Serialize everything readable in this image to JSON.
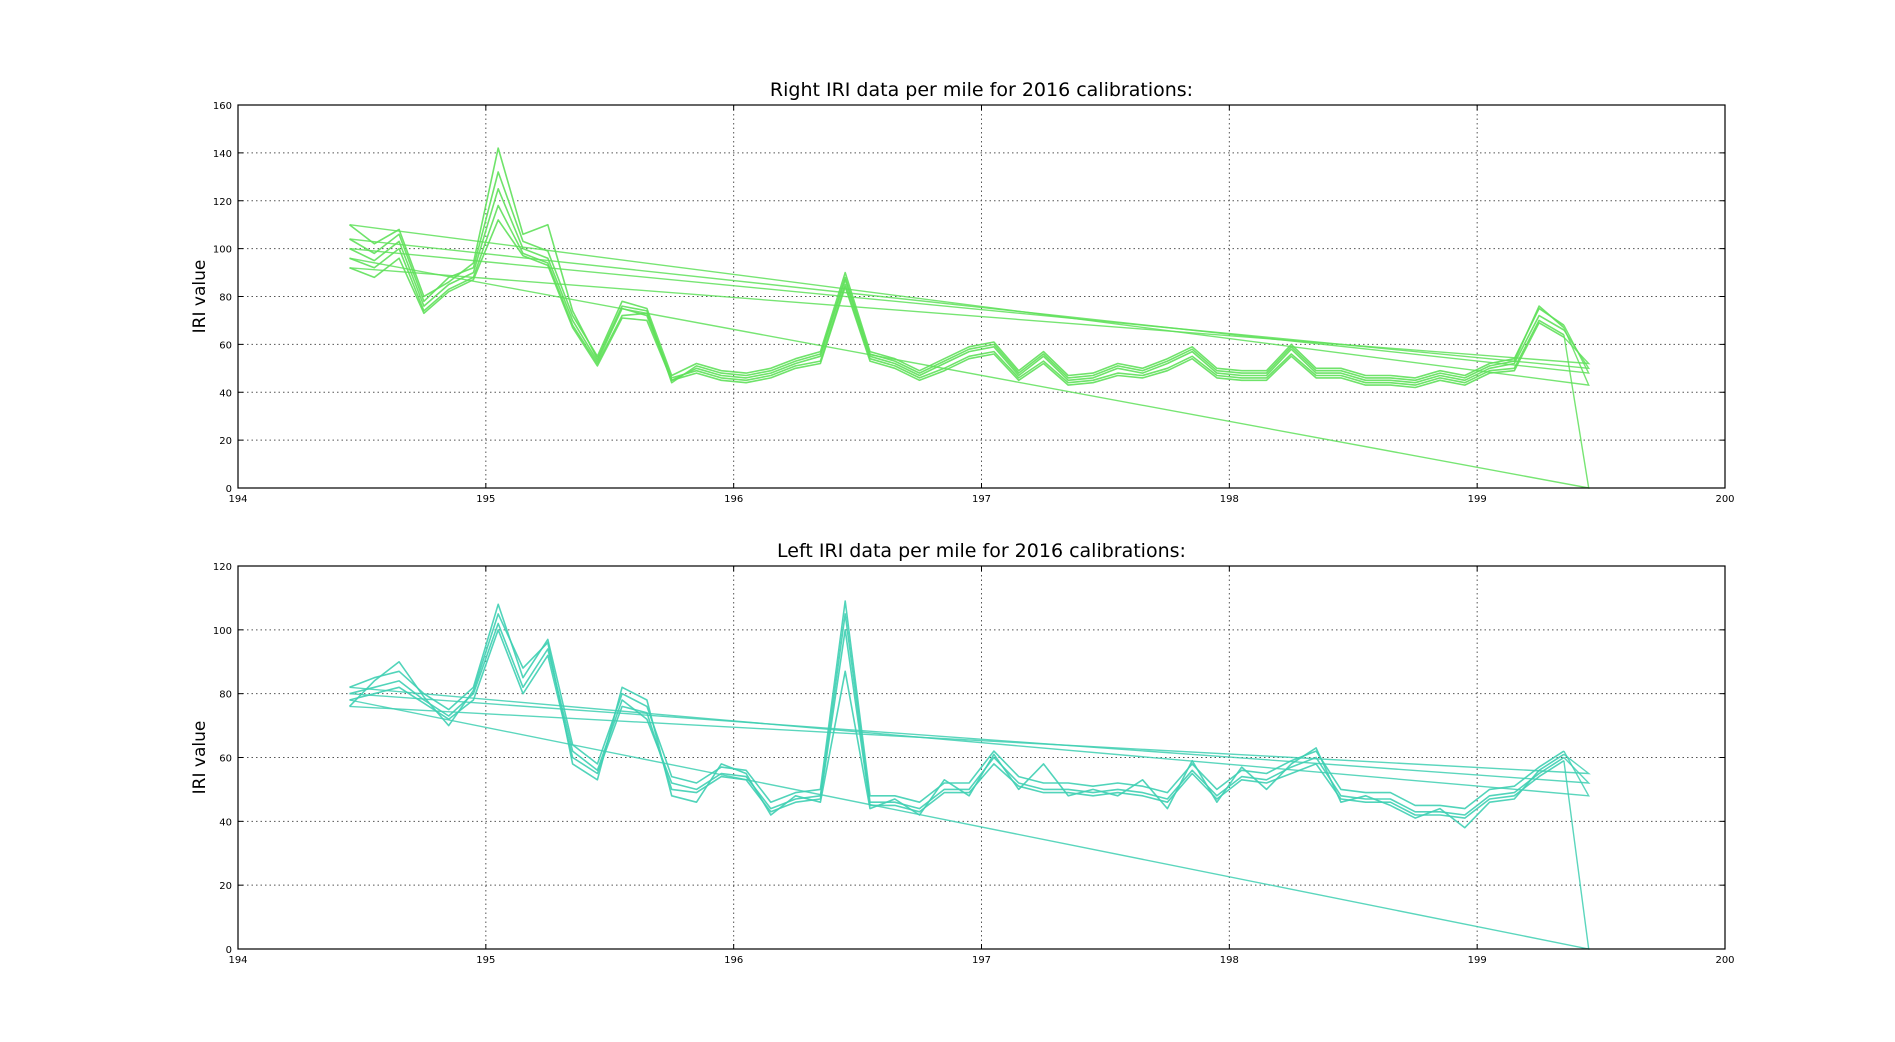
{
  "chart_data": [
    {
      "type": "line",
      "title": "Right IRI data per mile for 2016 calibrations:",
      "xlabel": "",
      "ylabel": "IRI value",
      "xlim": [
        194,
        200
      ],
      "ylim": [
        0,
        160
      ],
      "xticks": [
        194,
        195,
        196,
        197,
        198,
        199,
        200
      ],
      "yticks": [
        0,
        20,
        40,
        60,
        80,
        100,
        120,
        140,
        160
      ],
      "xtick_labels": [
        "194",
        "195",
        "196",
        "197",
        "198",
        "199",
        "200"
      ],
      "ytick_labels": [
        "0",
        "20",
        "40",
        "60",
        "80",
        "100",
        "120",
        "140",
        "160"
      ],
      "grid": true,
      "color": "#5fe05a",
      "x": [
        194.45,
        194.55,
        194.65,
        194.75,
        194.85,
        194.95,
        195.05,
        195.15,
        195.25,
        195.35,
        195.45,
        195.55,
        195.65,
        195.75,
        195.85,
        195.95,
        196.05,
        196.15,
        196.25,
        196.35,
        196.45,
        196.55,
        196.65,
        196.75,
        196.85,
        196.95,
        197.05,
        197.15,
        197.25,
        197.35,
        197.45,
        197.55,
        197.65,
        197.75,
        197.85,
        197.95,
        198.05,
        198.15,
        198.25,
        198.35,
        198.45,
        198.55,
        198.65,
        198.75,
        198.85,
        198.95,
        199.05,
        199.15,
        199.25,
        199.35
      ],
      "series": [
        {
          "values": [
            100,
            95,
            103,
            76,
            85,
            90,
            125,
            100,
            96,
            70,
            53,
            75,
            72,
            45,
            50,
            47,
            46,
            48,
            52,
            55,
            87,
            55,
            52,
            47,
            52,
            57,
            59,
            47,
            55,
            45,
            46,
            50,
            48,
            52,
            57,
            48,
            47,
            47,
            58,
            48,
            48,
            45,
            45,
            44,
            47,
            45,
            50,
            52,
            72,
            66
          ],
          "tail": [
            66,
            50
          ]
        },
        {
          "values": [
            96,
            92,
            100,
            74,
            83,
            88,
            118,
            98,
            94,
            68,
            52,
            72,
            73,
            46,
            49,
            46,
            45,
            47,
            51,
            53,
            85,
            54,
            51,
            46,
            50,
            55,
            57,
            46,
            53,
            44,
            45,
            48,
            47,
            50,
            55,
            47,
            46,
            46,
            56,
            47,
            47,
            44,
            44,
            43,
            46,
            44,
            49,
            50,
            70,
            64
          ],
          "tail": [
            64,
            0
          ]
        },
        {
          "values": [
            104,
            98,
            106,
            78,
            88,
            92,
            132,
            103,
            99,
            72,
            55,
            78,
            75,
            47,
            52,
            49,
            48,
            50,
            54,
            57,
            90,
            57,
            54,
            49,
            54,
            59,
            61,
            49,
            57,
            47,
            48,
            52,
            50,
            54,
            59,
            50,
            49,
            49,
            60,
            50,
            50,
            47,
            47,
            46,
            49,
            47,
            52,
            54,
            75,
            68
          ],
          "tail": [
            68,
            48
          ]
        },
        {
          "values": [
            110,
            102,
            108,
            80,
            86,
            94,
            142,
            106,
            110,
            74,
            54,
            76,
            74,
            44,
            51,
            48,
            47,
            49,
            53,
            56,
            88,
            56,
            53,
            48,
            53,
            58,
            60,
            48,
            56,
            46,
            47,
            51,
            49,
            53,
            58,
            49,
            48,
            48,
            59,
            49,
            49,
            46,
            46,
            45,
            48,
            46,
            51,
            53,
            76,
            67
          ],
          "tail": [
            67,
            43
          ]
        },
        {
          "values": [
            92,
            88,
            96,
            73,
            82,
            87,
            112,
            97,
            93,
            67,
            51,
            71,
            70,
            45,
            48,
            45,
            44,
            46,
            50,
            52,
            84,
            53,
            50,
            45,
            49,
            54,
            56,
            45,
            52,
            43,
            44,
            47,
            46,
            49,
            54,
            46,
            45,
            45,
            55,
            46,
            46,
            43,
            43,
            42,
            45,
            43,
            48,
            49,
            69,
            63
          ],
          "tail": [
            63,
            52
          ]
        }
      ]
    },
    {
      "type": "line",
      "title": "Left IRI data per mile for 2016 calibrations:",
      "xlabel": "",
      "ylabel": "IRI value",
      "xlim": [
        194,
        200
      ],
      "ylim": [
        0,
        120
      ],
      "xticks": [
        194,
        195,
        196,
        197,
        198,
        199,
        200
      ],
      "yticks": [
        0,
        20,
        40,
        60,
        80,
        100,
        120
      ],
      "xtick_labels": [
        "194",
        "195",
        "196",
        "197",
        "198",
        "199",
        "200"
      ],
      "ytick_labels": [
        "0",
        "20",
        "40",
        "60",
        "80",
        "100",
        "120"
      ],
      "grid": true,
      "color": "#3ecfb2",
      "x": [
        194.45,
        194.55,
        194.65,
        194.75,
        194.85,
        194.95,
        195.05,
        195.15,
        195.25,
        195.35,
        195.45,
        195.55,
        195.65,
        195.75,
        195.85,
        195.95,
        196.05,
        196.15,
        196.25,
        196.35,
        196.45,
        196.55,
        196.65,
        196.75,
        196.85,
        196.95,
        197.05,
        197.15,
        197.25,
        197.35,
        197.45,
        197.55,
        197.65,
        197.75,
        197.85,
        197.95,
        198.05,
        198.15,
        198.25,
        198.35,
        198.45,
        198.55,
        198.65,
        198.75,
        198.85,
        198.95,
        199.05,
        199.15,
        199.25,
        199.35
      ],
      "series": [
        {
          "values": [
            80,
            82,
            84,
            78,
            73,
            80,
            102,
            82,
            94,
            62,
            56,
            78,
            72,
            52,
            50,
            55,
            54,
            44,
            47,
            48,
            105,
            46,
            46,
            44,
            50,
            50,
            60,
            52,
            50,
            50,
            49,
            50,
            49,
            47,
            56,
            48,
            54,
            53,
            57,
            60,
            48,
            47,
            47,
            43,
            43,
            42,
            48,
            49,
            55,
            60
          ],
          "tail": [
            60,
            52
          ]
        },
        {
          "values": [
            78,
            80,
            82,
            77,
            72,
            78,
            100,
            80,
            92,
            60,
            55,
            76,
            74,
            50,
            49,
            54,
            53,
            43,
            46,
            47,
            100,
            45,
            45,
            43,
            49,
            49,
            58,
            51,
            49,
            49,
            48,
            49,
            48,
            46,
            55,
            47,
            53,
            52,
            55,
            58,
            47,
            46,
            46,
            42,
            42,
            41,
            47,
            48,
            54,
            59
          ],
          "tail": [
            59,
            0
          ]
        },
        {
          "values": [
            82,
            85,
            87,
            80,
            75,
            82,
            108,
            85,
            97,
            64,
            58,
            80,
            76,
            54,
            52,
            57,
            56,
            46,
            49,
            50,
            109,
            48,
            48,
            46,
            52,
            52,
            62,
            54,
            52,
            52,
            51,
            52,
            51,
            49,
            58,
            50,
            56,
            55,
            59,
            62,
            50,
            49,
            49,
            45,
            45,
            44,
            50,
            51,
            57,
            62
          ],
          "tail": [
            62,
            48
          ]
        },
        {
          "values": [
            76,
            84,
            90,
            79,
            70,
            81,
            105,
            88,
            96,
            58,
            53,
            82,
            78,
            48,
            46,
            58,
            55,
            42,
            48,
            46,
            87,
            44,
            47,
            42,
            53,
            48,
            61,
            50,
            58,
            48,
            50,
            48,
            53,
            44,
            59,
            46,
            57,
            50,
            58,
            63,
            46,
            48,
            45,
            41,
            44,
            38,
            46,
            47,
            56,
            61
          ],
          "tail": [
            61,
            55
          ]
        }
      ]
    }
  ]
}
